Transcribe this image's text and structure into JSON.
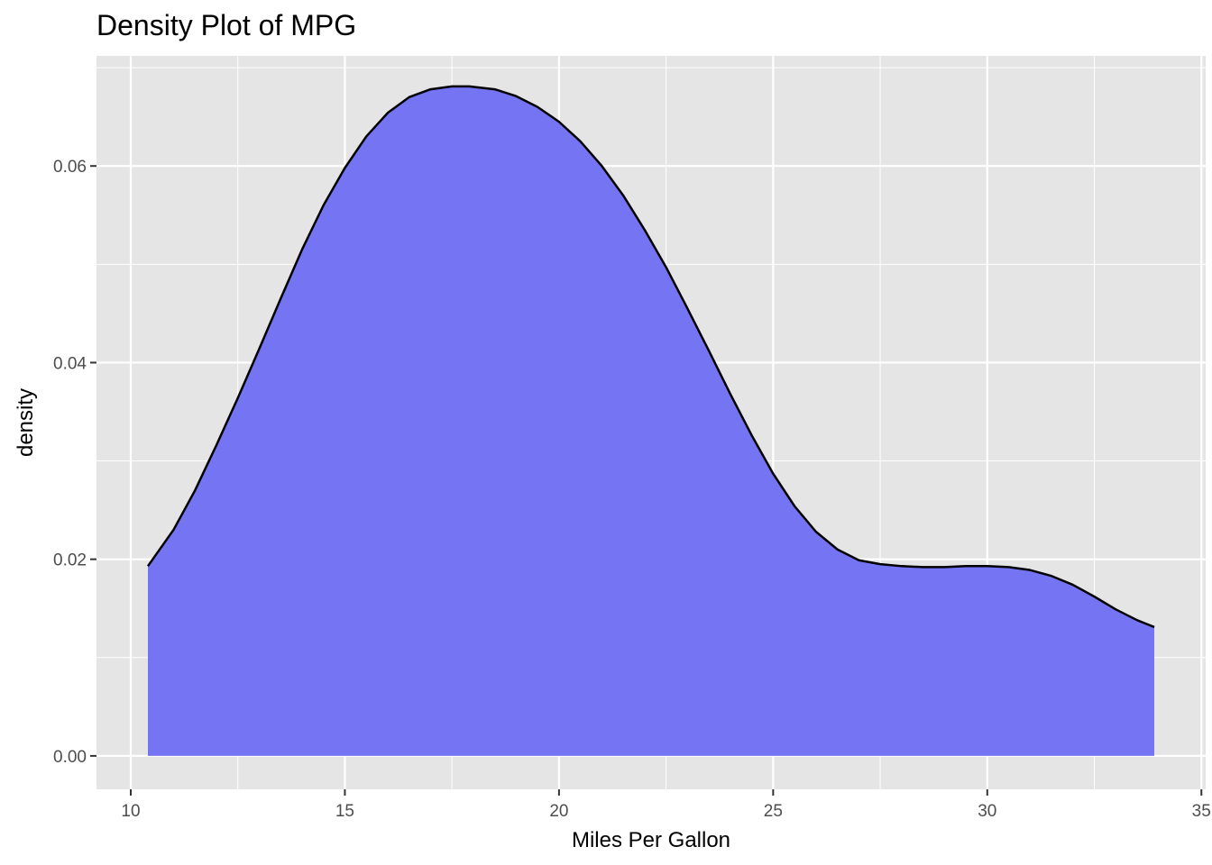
{
  "chart_data": {
    "type": "area",
    "title": "Density Plot of MPG",
    "xlabel": "Miles Per Gallon",
    "ylabel": "density",
    "xlim": [
      9.2,
      35.1
    ],
    "ylim": [
      -0.0034,
      0.0712
    ],
    "x_ticks": [
      10,
      15,
      20,
      25,
      30,
      35
    ],
    "x_tick_labels": [
      "10",
      "15",
      "20",
      "25",
      "30",
      "35"
    ],
    "y_ticks": [
      0,
      0.02,
      0.04,
      0.06
    ],
    "y_tick_labels": [
      "0.00",
      "0.02",
      "0.04",
      "0.06"
    ],
    "grid": true,
    "fill_color": "#7575f4",
    "line_color": "#000000",
    "panel_background": "#e5e5e5",
    "series": [
      {
        "x": [
          10.4,
          11.0,
          11.5,
          12.0,
          12.5,
          13.0,
          13.5,
          14.0,
          14.5,
          15.0,
          15.5,
          16.0,
          16.5,
          17.0,
          17.5,
          17.9,
          18.5,
          19.0,
          19.5,
          20.0,
          20.5,
          21.0,
          21.5,
          22.0,
          22.5,
          23.0,
          23.5,
          24.0,
          24.5,
          25.0,
          25.5,
          26.0,
          26.5,
          27.0,
          27.5,
          28.0,
          28.5,
          29.0,
          29.5,
          30.0,
          30.5,
          31.0,
          31.5,
          32.0,
          32.5,
          33.0,
          33.5,
          33.9
        ],
        "y": [
          0.0193,
          0.023,
          0.027,
          0.0316,
          0.0364,
          0.0414,
          0.0465,
          0.0515,
          0.056,
          0.0598,
          0.063,
          0.0654,
          0.067,
          0.0678,
          0.0681,
          0.0681,
          0.0678,
          0.0671,
          0.066,
          0.0645,
          0.0625,
          0.06,
          0.057,
          0.0535,
          0.0497,
          0.0455,
          0.0412,
          0.0368,
          0.0326,
          0.0287,
          0.0254,
          0.0228,
          0.021,
          0.0199,
          0.0195,
          0.0193,
          0.0192,
          0.0192,
          0.0193,
          0.0193,
          0.0192,
          0.0189,
          0.0183,
          0.0174,
          0.0162,
          0.0149,
          0.0138,
          0.0131
        ]
      }
    ]
  }
}
